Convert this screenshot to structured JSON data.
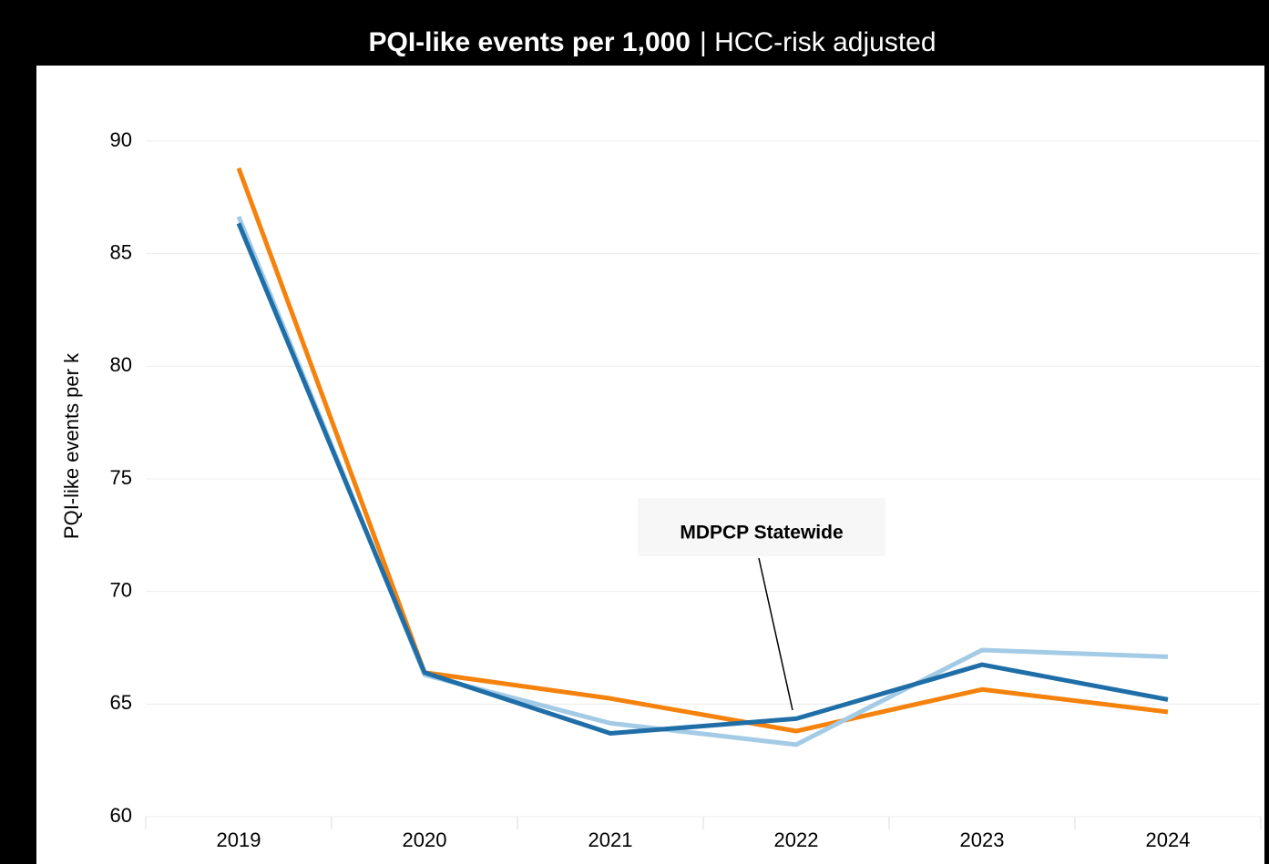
{
  "chart_data": {
    "type": "line",
    "title": "PQI-like events per 1,000",
    "subtitle": "| HCC-risk adjusted",
    "y_label": "PQI-like events per k",
    "annotation": "MDPCP Statewide",
    "categories": [
      "2019",
      "2020",
      "2021",
      "2022",
      "2023",
      "2024"
    ],
    "series": [
      {
        "color": "#f5820d",
        "values": [
          88.8,
          66.4,
          65.25,
          63.8,
          65.65,
          64.65
        ]
      },
      {
        "color": "#a3cbe6",
        "values": [
          86.65,
          66.3,
          64.15,
          63.2,
          67.4,
          67.1
        ]
      },
      {
        "color": "#1f6ea8",
        "values": [
          86.35,
          66.4,
          63.7,
          64.35,
          66.75,
          65.2
        ]
      }
    ],
    "ylim": [
      60,
      90
    ],
    "yticks": [
      60,
      65,
      70,
      75,
      80,
      85,
      90
    ],
    "grid": true
  }
}
